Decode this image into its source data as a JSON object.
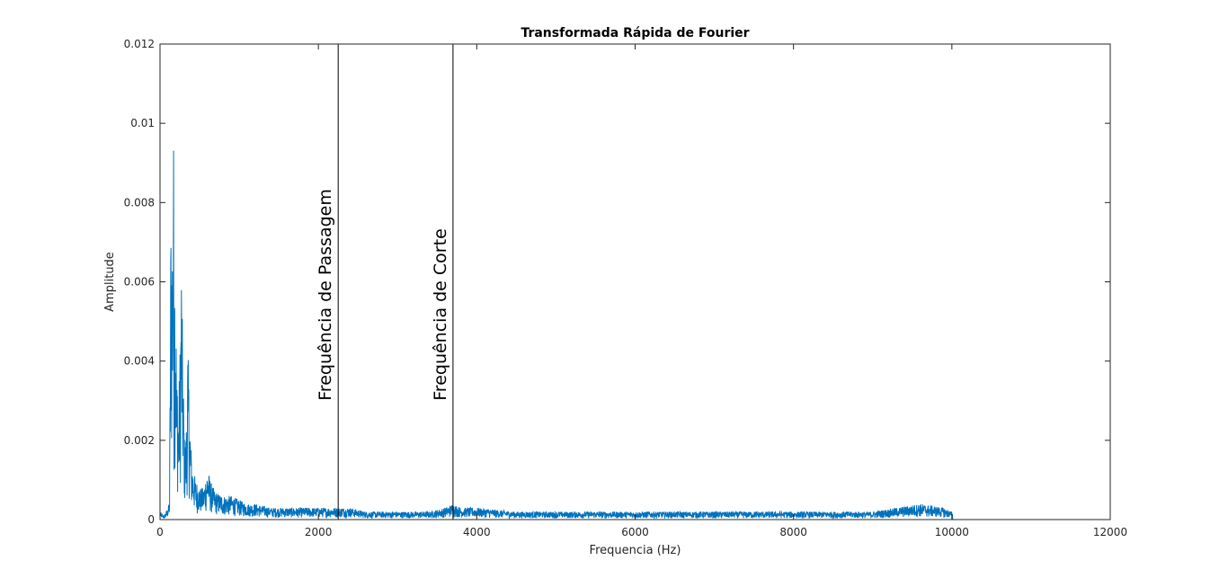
{
  "chart_data": {
    "type": "line",
    "title": "Transformada Rápida de Fourier",
    "xlabel": "Frequencia (Hz)",
    "ylabel": "Amplitude",
    "xlim": [
      0,
      12000
    ],
    "ylim": [
      0,
      0.012
    ],
    "xticks": [
      0,
      2000,
      4000,
      6000,
      8000,
      10000,
      12000
    ],
    "xtick_labels": [
      "0",
      "2000",
      "4000",
      "6000",
      "8000",
      "10000",
      "12000"
    ],
    "yticks": [
      0,
      0.002,
      0.004,
      0.006,
      0.008,
      0.01,
      0.012
    ],
    "ytick_labels": [
      "0",
      "0.002",
      "0.004",
      "0.006",
      "0.008",
      "0.01",
      "0.012"
    ],
    "grid": false,
    "series_color": "#0072BD",
    "series": [
      {
        "x": [
          0,
          50,
          100,
          120,
          140,
          150,
          160,
          170,
          180,
          190,
          200,
          210,
          220,
          230,
          250,
          270,
          290,
          300,
          310,
          330,
          350,
          380,
          400,
          420,
          450,
          480,
          500,
          550,
          600,
          650,
          700,
          800,
          900,
          1000,
          1100,
          1200,
          1400,
          1600,
          1800,
          2000,
          2200,
          2400,
          2600,
          2800,
          3000,
          3200,
          3400,
          3600,
          3700,
          3800,
          4000,
          4500,
          5000,
          5500,
          6000,
          6500,
          7000,
          7500,
          8000,
          8500,
          9000,
          9300,
          9600,
          9900,
          10000,
          10050,
          11000
        ],
        "y": [
          0.0002,
          0.0001,
          0.0003,
          0.0005,
          0.0096,
          0.0065,
          0.0089,
          0.0102,
          0.005,
          0.0083,
          0.006,
          0.0035,
          0.004,
          0.0025,
          0.0042,
          0.0067,
          0.004,
          0.0031,
          0.002,
          0.0022,
          0.0045,
          0.0025,
          0.0015,
          0.0013,
          0.001,
          0.0009,
          0.0008,
          0.0008,
          0.0013,
          0.0009,
          0.0007,
          0.0006,
          0.0006,
          0.0005,
          0.0004,
          0.0004,
          0.0003,
          0.0003,
          0.0003,
          0.0003,
          0.0003,
          0.0003,
          0.0002,
          0.0002,
          0.0002,
          0.0002,
          0.0002,
          0.0003,
          0.0004,
          0.0003,
          0.0003,
          0.0002,
          0.0002,
          0.0002,
          0.0002,
          0.0002,
          0.0002,
          0.0002,
          0.0002,
          0.0002,
          0.0002,
          0.0003,
          0.0004,
          0.0003,
          0.0002,
          0.0,
          0.0
        ]
      }
    ],
    "vlines": [
      {
        "x": 2250,
        "label": "Frequência de Passagem"
      },
      {
        "x": 3700,
        "label": "Frequência de Corte"
      }
    ]
  }
}
